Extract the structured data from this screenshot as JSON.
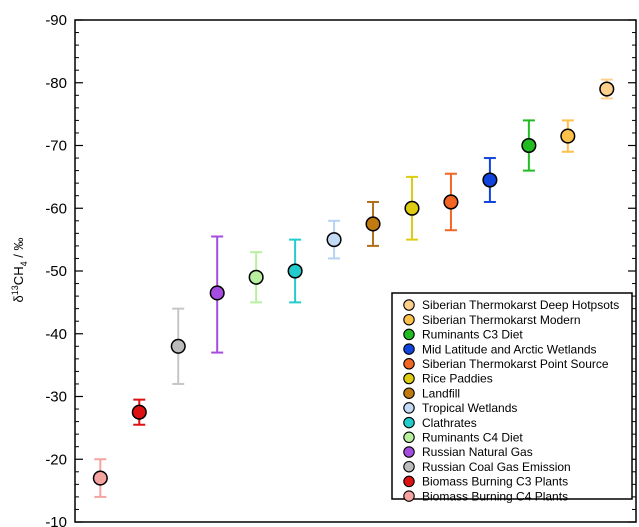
{
  "chart_data": {
    "type": "scatter",
    "title": "",
    "xlabel": "",
    "ylabel": {
      "prefix": "δ",
      "sup": "13",
      "main": "CH",
      "sub": "4",
      "suffix": " / ‰"
    },
    "ylim": [
      -10,
      -90
    ],
    "yticks": [
      -90,
      -80,
      -70,
      -60,
      -50,
      -40,
      -30,
      -20,
      -10
    ],
    "ytick_labels": [
      "-90",
      "-80",
      "-70",
      "-60",
      "-50",
      "-40",
      "-30",
      "-20",
      "-10"
    ],
    "error_bars": true,
    "legend_position": "bottom-right",
    "series": [
      {
        "name": "Siberian Thermokarst Deep Hotpsots",
        "x": 14,
        "y": -79,
        "err_low": -77.5,
        "err_high": -80.5,
        "color": "#fcd08a",
        "bar_color": "#fcd08a"
      },
      {
        "name": "Siberian Thermokarst Modern",
        "x": 13,
        "y": -71.5,
        "err_low": -69,
        "err_high": -74,
        "color": "#fdc04a",
        "bar_color": "#fdc04a"
      },
      {
        "name": "Ruminants C3 Diet",
        "x": 12,
        "y": -70,
        "err_low": -66,
        "err_high": -74,
        "color": "#22bb22",
        "bar_color": "#22bb22"
      },
      {
        "name": "Mid Latitude and Arctic Wetlands",
        "x": 11,
        "y": -64.5,
        "err_low": -61,
        "err_high": -68,
        "color": "#1144dd",
        "bar_color": "#1144dd"
      },
      {
        "name": "Siberian Thermokarst Point Source",
        "x": 10,
        "y": -61,
        "err_low": -56.5,
        "err_high": -65.5,
        "color": "#f26522",
        "bar_color": "#f26522"
      },
      {
        "name": "Rice Paddies",
        "x": 9,
        "y": -60,
        "err_low": -55,
        "err_high": -65,
        "color": "#ddcc11",
        "bar_color": "#ddcc11"
      },
      {
        "name": "Landfill",
        "x": 8,
        "y": -57.5,
        "err_low": -54,
        "err_high": -61,
        "color": "#c07a10",
        "bar_color": "#b0701a"
      },
      {
        "name": "Tropical Wetlands",
        "x": 7,
        "y": -55,
        "err_low": -52,
        "err_high": -58,
        "color": "#c2daf5",
        "bar_color": "#b7d3f2"
      },
      {
        "name": "Clathrates",
        "x": 6,
        "y": -50,
        "err_low": -45,
        "err_high": -55,
        "color": "#22cccc",
        "bar_color": "#22cccc"
      },
      {
        "name": "Ruminants C4 Diet",
        "x": 5,
        "y": -49,
        "err_low": -45,
        "err_high": -53,
        "color": "#b8f0a0",
        "bar_color": "#b8f0a0"
      },
      {
        "name": "Russian Natural Gas",
        "x": 4,
        "y": -46.5,
        "err_low": -37,
        "err_high": -55.5,
        "color": "#a54de0",
        "bar_color": "#a54de0"
      },
      {
        "name": "Russian Coal Gas Emission",
        "x": 3,
        "y": -38,
        "err_low": -32,
        "err_high": -44,
        "color": "#bbbbbb",
        "bar_color": "#c6c6c6"
      },
      {
        "name": "Biomass Burning C3 Plants",
        "x": 2,
        "y": -27.5,
        "err_low": -25.5,
        "err_high": -29.5,
        "color": "#dd1111",
        "bar_color": "#dd1111"
      },
      {
        "name": "Biomass Burning C4 Plants",
        "x": 1,
        "y": -17,
        "err_low": -14,
        "err_high": -20,
        "color": "#f4a3a0",
        "bar_color": "#f4a3a0"
      }
    ]
  }
}
